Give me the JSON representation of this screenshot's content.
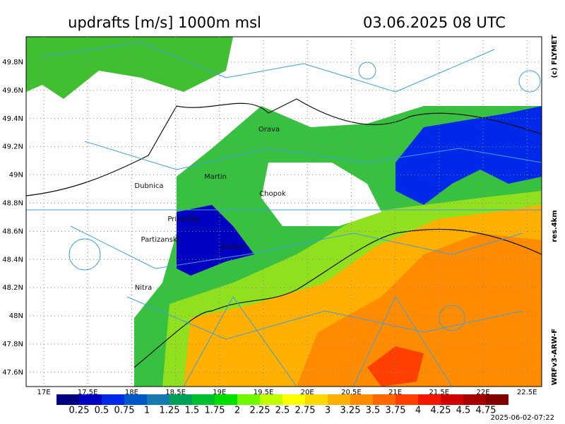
{
  "title": "updrafts [m/s] 1000m msl",
  "datetime": "03.06.2025 08 UTC",
  "copyright": "(c) FLYMET",
  "resolution": "res.4km",
  "model": "WRFv3-ARW-F",
  "run_time": "2025-06-02-07:22",
  "lat_ticks": [
    {
      "value": 49.8,
      "label": "49.8N"
    },
    {
      "value": 49.6,
      "label": "49.6N"
    },
    {
      "value": 49.4,
      "label": "49.4N"
    },
    {
      "value": 49.2,
      "label": "49.2N"
    },
    {
      "value": 49,
      "label": "49N"
    },
    {
      "value": 48.8,
      "label": "48.8N"
    },
    {
      "value": 48.6,
      "label": "48.6N"
    },
    {
      "value": 48.4,
      "label": "48.4N"
    },
    {
      "value": 48.2,
      "label": "48.2N"
    },
    {
      "value": 48,
      "label": "48N"
    },
    {
      "value": 47.8,
      "label": "47.8N"
    },
    {
      "value": 47.6,
      "label": "47.6N"
    }
  ],
  "lon_ticks": [
    {
      "value": 17,
      "label": "17E"
    },
    {
      "value": 17.5,
      "label": "17.5E"
    },
    {
      "value": 18,
      "label": "18E"
    },
    {
      "value": 18.5,
      "label": "18.5E"
    },
    {
      "value": 19,
      "label": "19E"
    },
    {
      "value": 19.5,
      "label": "19.5E"
    },
    {
      "value": 20,
      "label": "20E"
    },
    {
      "value": 20.5,
      "label": "20.5E"
    },
    {
      "value": 21,
      "label": "21E"
    },
    {
      "value": 21.5,
      "label": "21.5E"
    },
    {
      "value": 22,
      "label": "22E"
    },
    {
      "value": 22.5,
      "label": "22.5E"
    }
  ],
  "towns": [
    "Orava",
    "Martin",
    "Dubnica",
    "Chopok",
    "Prievidza",
    "Partizanske",
    "Zvolen",
    "Nitra"
  ],
  "colorbar": {
    "colors": [
      "#000080",
      "#0000c0",
      "#0028e8",
      "#0058c8",
      "#1878b0",
      "#00a058",
      "#00c030",
      "#00e000",
      "#70f800",
      "#c0ff00",
      "#ffff00",
      "#ffd800",
      "#ffb000",
      "#ff8c00",
      "#ff6800",
      "#ff4000",
      "#f01800",
      "#d00000",
      "#a80000",
      "#800000"
    ],
    "ticks": [
      0.25,
      0.5,
      0.75,
      1,
      1.25,
      1.5,
      1.75,
      2,
      2.25,
      2.5,
      2.75,
      3,
      3.25,
      3.5,
      3.75,
      4,
      4.25,
      4.5,
      4.75
    ]
  }
}
